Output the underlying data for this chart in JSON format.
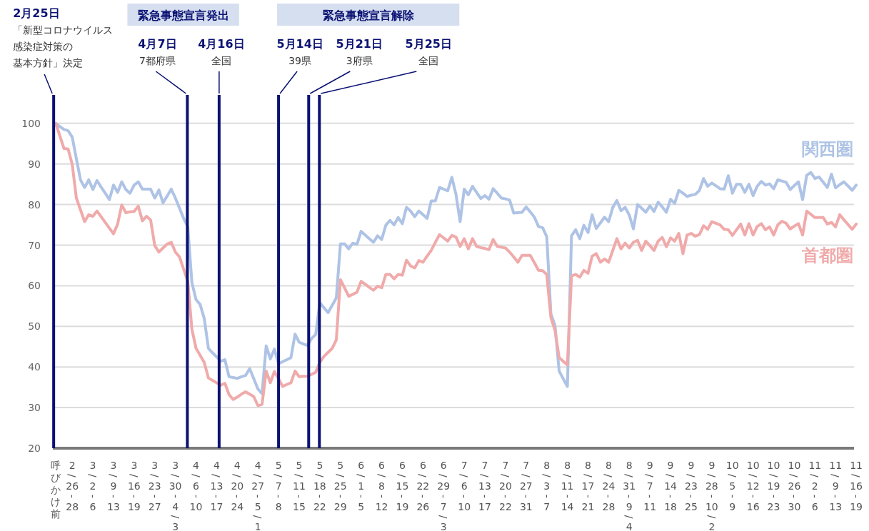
{
  "chart_data": {
    "type": "line",
    "ylim": [
      20,
      107
    ],
    "yticks": [
      20,
      30,
      40,
      50,
      60,
      70,
      80,
      90,
      100
    ],
    "grid": "y",
    "categories": [
      "呼びかけ前",
      null,
      null,
      null,
      "2/26-28",
      null,
      null,
      null,
      null,
      "3/2-6",
      null,
      null,
      null,
      null,
      "3/9-13",
      null,
      null,
      null,
      null,
      "3/16-19",
      null,
      null,
      null,
      null,
      "3/23-27",
      null,
      null,
      null,
      null,
      "3/30-4/3",
      null,
      null,
      null,
      null,
      "4/6-10",
      null,
      null,
      null,
      null,
      "4/13-17",
      null,
      null,
      null,
      null,
      "4/20-24",
      null,
      null,
      null,
      null,
      "4/27-5/1",
      null,
      null,
      null,
      null,
      "5/7-8",
      null,
      null,
      null,
      null,
      "5/11-15",
      null,
      null,
      null,
      null,
      "5/18-22",
      null,
      null,
      null,
      null,
      "5/25-29",
      null,
      null,
      null,
      null,
      "6/1-5",
      null,
      null,
      null,
      null,
      "6/8-12",
      null,
      null,
      null,
      null,
      "6/15-19",
      null,
      null,
      null,
      null,
      "6/22-26",
      null,
      null,
      null,
      null,
      "6/29-7/3",
      null,
      null,
      null,
      null,
      "7/6-10",
      null,
      null,
      null,
      null,
      "7/13-17",
      null,
      null,
      null,
      null,
      "7/20-22",
      null,
      null,
      null,
      null,
      "7/27-31",
      null,
      null,
      null,
      null,
      "8/3-7",
      null,
      null,
      null,
      null,
      "8/11-14",
      null,
      null,
      null,
      null,
      "8/17-21",
      null,
      null,
      null,
      null,
      "8/24-28",
      null,
      null,
      null,
      null,
      "8/31-9/4",
      null,
      null,
      null,
      null,
      "9/7-11",
      null,
      null,
      null,
      null,
      "9/14-18",
      null,
      null,
      null,
      null,
      "9/23-25",
      null,
      null,
      null,
      null,
      "9/28-10/2",
      null,
      null,
      null,
      null,
      "10/5-9",
      null,
      null,
      null,
      null,
      "10/12-16",
      null,
      null,
      null,
      null,
      "10/19-23",
      null,
      null,
      null,
      null,
      "10/26-30",
      null,
      null,
      null,
      null,
      "11/2-6",
      null,
      null,
      null,
      null,
      "11/9-13",
      null,
      null,
      null,
      null,
      "11/16-19"
    ],
    "series": [
      {
        "name": "関西圏",
        "color": "#aec3e5",
        "values": [
          100,
          99.2,
          98.5,
          98.2,
          96.6,
          91.3,
          86.1,
          84.2,
          86.1,
          83.7,
          85.9,
          84.3,
          82.8,
          81.2,
          84.8,
          83.0,
          85.6,
          83.7,
          82.8,
          84.8,
          85.6,
          83.8,
          83.8,
          83.8,
          81.6,
          83.6,
          80.4,
          82.1,
          83.8,
          81.6,
          79.1,
          76.6,
          74.6,
          60.8,
          56.6,
          55.4,
          51.9,
          44.6,
          43.5,
          42.5,
          41.4,
          41.8,
          37.6,
          37.4,
          37.2,
          37.6,
          37.9,
          39.6,
          37.1,
          34.6,
          33.4,
          45.2,
          42.0,
          44.4,
          40.8,
          41.3,
          41.8,
          42.3,
          48.1,
          46.1,
          45.7,
          45.3,
          47.0,
          48.0,
          55.8,
          54.6,
          53.4,
          55.2,
          57.0,
          70.3,
          70.3,
          69.1,
          70.5,
          70.2,
          73.4,
          72.5,
          71.6,
          70.7,
          72.3,
          71.4,
          74.9,
          76.1,
          75.0,
          76.8,
          75.3,
          79.3,
          78.4,
          77.0,
          78.4,
          77.5,
          76.6,
          80.9,
          80.9,
          84.2,
          83.8,
          83.4,
          86.7,
          82.5,
          75.8,
          83.8,
          82.4,
          84.5,
          83.0,
          81.5,
          82.2,
          81.3,
          83.9,
          82.8,
          81.6,
          81.4,
          81.1,
          77.9,
          78.0,
          78.1,
          79.4,
          78.2,
          76.9,
          74.6,
          74.3,
          72.1,
          53.1,
          50.2,
          39.0,
          37.1,
          35.2,
          72.3,
          73.8,
          71.6,
          74.9,
          73.1,
          77.5,
          74.1,
          75.5,
          76.9,
          75.8,
          79.3,
          81.0,
          78.5,
          79.3,
          77.4,
          74.0,
          80.0,
          79.1,
          78.1,
          79.7,
          78.3,
          80.6,
          79.4,
          78.1,
          81.3,
          80.3,
          83.5,
          82.8,
          82.0,
          82.3,
          82.5,
          83.5,
          86.4,
          84.5,
          85.3,
          84.6,
          83.9,
          83.8,
          87.1,
          82.8,
          85.0,
          85.0,
          83.0,
          85.0,
          82.2,
          84.5,
          85.7,
          84.8,
          85.1,
          83.9,
          86.1,
          85.8,
          85.5,
          83.7,
          84.7,
          85.6,
          81.2,
          87.2,
          87.9,
          86.4,
          86.8,
          85.5,
          84.2,
          87.5,
          84.1,
          84.9,
          85.6,
          84.6,
          83.5,
          84.8
        ]
      },
      {
        "name": "首都圏",
        "color": "#f0aaaa",
        "values": [
          100,
          96.9,
          93.8,
          93.7,
          89.9,
          81.6,
          78.7,
          75.8,
          77.5,
          77.1,
          78.4,
          77.0,
          75.6,
          74.2,
          72.8,
          75.2,
          79.9,
          78.0,
          78.2,
          78.3,
          79.6,
          76.0,
          77.1,
          76.2,
          69.9,
          68.3,
          69.3,
          70.3,
          70.7,
          68.3,
          67.1,
          64.1,
          61.1,
          49.3,
          44.6,
          42.9,
          41.1,
          37.3,
          36.7,
          36.1,
          35.5,
          36.0,
          33.2,
          32.0,
          32.6,
          33.3,
          33.9,
          33.3,
          32.7,
          30.5,
          30.8,
          39.0,
          36.1,
          38.9,
          37.1,
          35.2,
          35.7,
          36.1,
          39.0,
          37.6,
          37.7,
          37.7,
          38.2,
          38.7,
          41.1,
          42.6,
          43.6,
          44.6,
          46.7,
          61.5,
          59.5,
          57.4,
          57.9,
          58.4,
          61.1,
          60.4,
          59.6,
          58.9,
          59.9,
          59.5,
          62.8,
          62.8,
          61.7,
          62.8,
          62.6,
          66.3,
          64.9,
          64.4,
          66.2,
          65.8,
          67.3,
          68.7,
          70.7,
          72.6,
          71.8,
          71.0,
          72.4,
          72.0,
          69.7,
          71.6,
          69.1,
          71.6,
          69.7,
          69.4,
          69.2,
          68.9,
          71.4,
          69.7,
          69.5,
          69.3,
          68.3,
          67.1,
          65.8,
          67.5,
          67.5,
          67.5,
          65.7,
          63.8,
          63.7,
          62.8,
          52.2,
          49.0,
          42.3,
          41.4,
          40.5,
          62.4,
          62.8,
          62.1,
          63.8,
          63.1,
          67.3,
          67.9,
          65.8,
          66.6,
          65.8,
          68.7,
          71.6,
          69.1,
          70.5,
          69.3,
          70.7,
          71.2,
          68.7,
          71.0,
          69.9,
          68.7,
          71.0,
          71.9,
          69.6,
          71.8,
          71.0,
          72.9,
          67.9,
          72.5,
          72.9,
          72.2,
          72.6,
          74.8,
          73.9,
          75.8,
          75.4,
          75.0,
          73.9,
          73.8,
          72.4,
          73.8,
          75.2,
          72.5,
          75.3,
          72.5,
          74.6,
          75.3,
          73.8,
          74.5,
          72.5,
          75.0,
          75.9,
          75.4,
          74.0,
          74.7,
          75.3,
          72.5,
          78.4,
          77.6,
          76.8,
          76.8,
          76.8,
          75.2,
          75.6,
          74.5,
          77.5,
          76.3,
          75.1,
          73.9,
          75.2
        ]
      }
    ],
    "annotations": [
      "緊急事態宣言発出",
      "緊急事態宣言解除",
      "**2月25日**「新型コロナウイルス感染症対策の基本方針」決定",
      "**4月7日**7都府県",
      "**4月16日**全国",
      "**5月14日**39県",
      "**5月21日**3府県",
      "**5月25日**全国"
    ]
  }
}
